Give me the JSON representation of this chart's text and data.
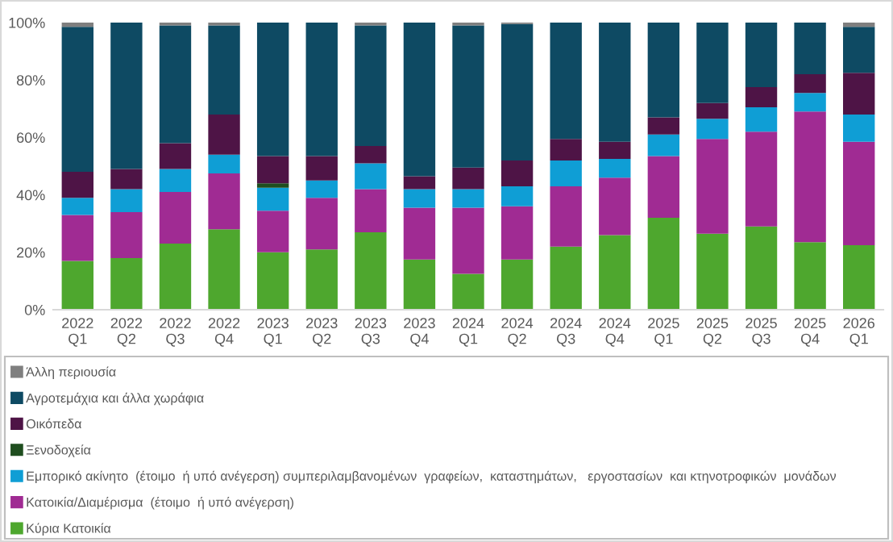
{
  "chart_data": {
    "type": "bar",
    "stacked": true,
    "legend": "bottom",
    "grid": false,
    "categories": [
      "2022\nQ1",
      "2022\nQ2",
      "2022\nQ3",
      "2022\nQ4",
      "2023\nQ1",
      "2023\nQ2",
      "2023\nQ3",
      "2023\nQ4",
      "2024\nQ1",
      "2024\nQ2",
      "2024\nQ3",
      "2024\nQ4",
      "2025\nQ1",
      "2025\nQ2",
      "2025\nQ3",
      "2025\nQ4",
      "2026\nQ1"
    ],
    "ylim": [
      0,
      100
    ],
    "yticks": [
      {
        "value": 0,
        "label": "0%"
      },
      {
        "value": 20,
        "label": "20%"
      },
      {
        "value": 40,
        "label": "40%"
      },
      {
        "value": 60,
        "label": "60%"
      },
      {
        "value": 80,
        "label": "80%"
      },
      {
        "value": 100,
        "label": "100%"
      }
    ],
    "series": [
      {
        "name": "Κύρια Κατοικία",
        "color": "#4ea72e",
        "values": [
          17,
          18,
          23,
          28,
          20,
          21,
          27,
          17.5,
          12.5,
          17.5,
          22,
          26,
          32,
          26.5,
          29,
          23.5,
          22.5
        ]
      },
      {
        "name": "Κατοικία/Διαμέρισμα  (έτοιμο  ή υπό ανέγερση)",
        "color": "#a02b93",
        "values": [
          16,
          16,
          18,
          19.5,
          14.5,
          18,
          15,
          18,
          23,
          18.5,
          21,
          20,
          21.5,
          33,
          33,
          45.5,
          36
        ]
      },
      {
        "name": "Εμπορικό ακίνητο  (έτοιμο  ή υπό ανέγερση) συμπεριλαμβανομένων  γραφείων,  καταστημάτων,   εργοστασίων  και κτηνοτροφικών  μονάδων",
        "color": "#0f9ed5",
        "values": [
          6,
          8,
          8,
          6.5,
          8,
          6,
          9,
          6.5,
          6.5,
          7,
          9,
          6.5,
          7.5,
          7,
          8.5,
          6.5,
          9.5
        ]
      },
      {
        "name": "Ξενοδοχεία",
        "color": "#1f4e1f",
        "values": [
          0,
          0,
          0,
          0,
          1.5,
          0,
          0,
          0,
          0,
          0,
          0,
          0,
          0,
          0,
          0,
          0,
          0
        ]
      },
      {
        "name": "Οικόπεδα",
        "color": "#4e1446",
        "values": [
          9,
          7,
          9,
          14,
          9.5,
          8.5,
          6,
          4.5,
          7.5,
          9,
          7.5,
          6,
          6,
          5.5,
          7,
          6.5,
          14.5
        ]
      },
      {
        "name": "Αγροτεμάχια και άλλα χωράφια",
        "color": "#0e4a63",
        "values": [
          50.5,
          51,
          41,
          31,
          46.5,
          46.5,
          42,
          53.5,
          49.5,
          47.5,
          40.5,
          41.5,
          33,
          28,
          22.5,
          18,
          16
        ]
      },
      {
        "name": "Άλλη περιουσία",
        "color": "#7f7f7f",
        "values": [
          1.5,
          0,
          1,
          1,
          0,
          0,
          1,
          0,
          1,
          0.5,
          0,
          0,
          0,
          0,
          0,
          0,
          1.5
        ]
      }
    ]
  }
}
